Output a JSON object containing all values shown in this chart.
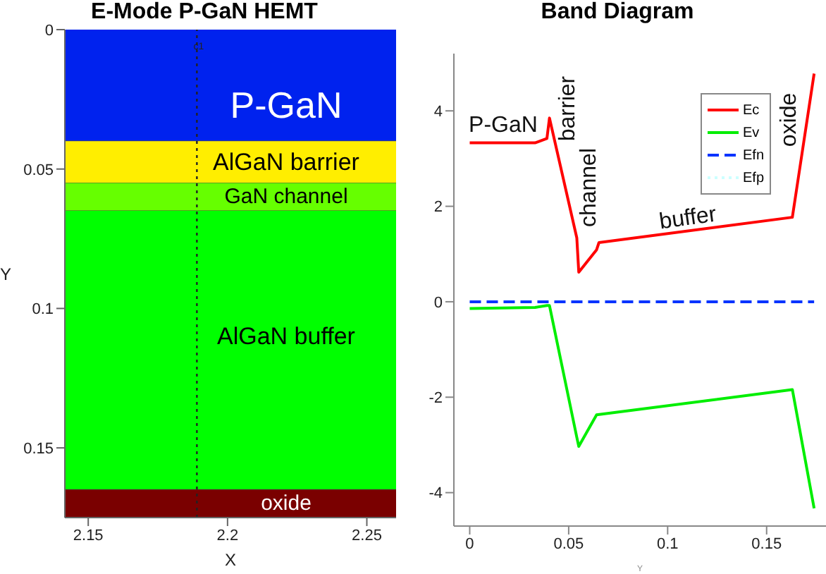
{
  "chart_data": [
    {
      "type": "area",
      "stacked": true,
      "title": "E-Mode P-GaN HEMT",
      "xlabel": "X",
      "ylabel": "Y",
      "x": [
        2.1416,
        2.2605
      ],
      "xlim": [
        2.1416,
        2.2605
      ],
      "ylim": [
        0.175,
        0
      ],
      "xticks": [
        2.15,
        2.2,
        2.25
      ],
      "yticks": [
        0,
        0.05,
        0.1,
        0.15
      ],
      "series": [
        {
          "name": "P-GaN",
          "color": "#0022ee",
          "values": [
            0.04,
            0.04
          ]
        },
        {
          "name": "AlGaN barrier",
          "color": "#ffee00",
          "values": [
            0.015,
            0.015
          ]
        },
        {
          "name": "GaN channel",
          "color": "#66ff00",
          "values": [
            0.01,
            0.01
          ]
        },
        {
          "name": "AlGaN buffer",
          "color": "#00ff00",
          "values": [
            0.1,
            0.1
          ]
        },
        {
          "name": "oxide",
          "color": "#7a0000",
          "values": [
            0.01,
            0.01
          ]
        }
      ],
      "ref_lines": [
        {
          "axis": "x",
          "value": 2.189,
          "label": "c1",
          "color": "#222222",
          "line_style": "dotted"
        }
      ]
    },
    {
      "type": "line",
      "title": "Band Diagram",
      "xlabel": "Y",
      "xlim": [
        -0.008,
        0.18
      ],
      "ylim": [
        -4.7,
        5.2
      ],
      "xticks": [
        0,
        0.05,
        0.1,
        0.15
      ],
      "yticks": [
        -4,
        -2,
        0,
        2,
        4
      ],
      "legend": "top right",
      "marker": "none",
      "series": [
        {
          "name": "Ec",
          "color": "#ff0000",
          "line_style": "solid",
          "x": [
            0,
            0.033,
            0.039,
            0.0403,
            0.0415,
            0.0541,
            0.0551,
            0.0641,
            0.0653,
            0.163,
            0.174
          ],
          "values": [
            3.33,
            3.33,
            3.42,
            3.85,
            3.63,
            1.34,
            0.62,
            1.09,
            1.24,
            1.77,
            4.78
          ]
        },
        {
          "name": "Ev",
          "color": "#00ee00",
          "line_style": "solid",
          "x": [
            0,
            0.033,
            0.039,
            0.0403,
            0.0541,
            0.0551,
            0.0641,
            0.163,
            0.174
          ],
          "values": [
            -0.14,
            -0.12,
            -0.08,
            -0.08,
            -2.84,
            -3.03,
            -2.37,
            -1.84,
            -4.33
          ]
        },
        {
          "name": "Efn",
          "color": "#0033ff",
          "line_style": "dashed",
          "x": [
            0,
            0.174
          ],
          "values": [
            0,
            0
          ]
        },
        {
          "name": "Efp",
          "color": "#ccffff",
          "line_style": "dotted"
        }
      ],
      "annotations": [
        "P-GaN",
        "barrier",
        "channel",
        "buffer",
        "oxide"
      ]
    }
  ]
}
